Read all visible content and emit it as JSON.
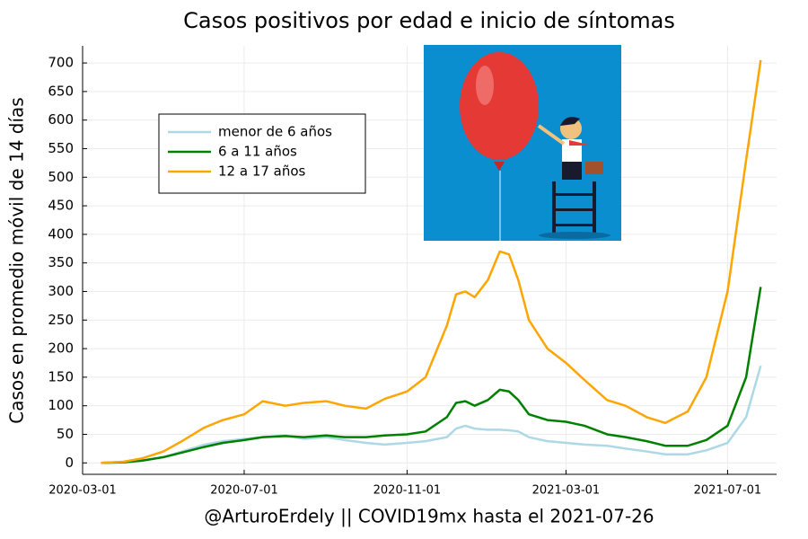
{
  "chart_data": {
    "type": "line",
    "title": "Casos positivos por edad e inicio de síntomas",
    "y_label": "Casos en promedio móvil de 14 días",
    "x_label": "@ArturoErdely || COVID19mx hasta el 2021-07-26",
    "x": [
      "2020-03-15",
      "2020-04-01",
      "2020-04-15",
      "2020-05-01",
      "2020-05-15",
      "2020-06-01",
      "2020-06-15",
      "2020-07-01",
      "2020-07-15",
      "2020-08-01",
      "2020-08-15",
      "2020-09-01",
      "2020-09-15",
      "2020-10-01",
      "2020-10-15",
      "2020-11-01",
      "2020-11-15",
      "2020-12-01",
      "2020-12-08",
      "2020-12-15",
      "2020-12-22",
      "2021-01-01",
      "2021-01-10",
      "2021-01-17",
      "2021-01-24",
      "2021-02-01",
      "2021-02-15",
      "2021-03-01",
      "2021-03-15",
      "2021-04-01",
      "2021-04-15",
      "2021-05-01",
      "2021-05-15",
      "2021-06-01",
      "2021-06-15",
      "2021-07-01",
      "2021-07-15",
      "2021-07-26"
    ],
    "series": [
      {
        "name": "menor de 6 años",
        "color": "#add8e6",
        "values": [
          0,
          1,
          4,
          10,
          20,
          32,
          38,
          42,
          45,
          48,
          42,
          45,
          40,
          35,
          32,
          35,
          38,
          45,
          60,
          65,
          60,
          58,
          58,
          57,
          55,
          45,
          38,
          35,
          32,
          30,
          25,
          20,
          15,
          15,
          22,
          35,
          80,
          170
        ]
      },
      {
        "name": "6 a 11 años",
        "color": "#008000",
        "values": [
          0,
          1,
          4,
          10,
          18,
          28,
          35,
          40,
          45,
          47,
          45,
          48,
          45,
          45,
          48,
          50,
          55,
          80,
          105,
          108,
          100,
          110,
          128,
          125,
          110,
          85,
          75,
          72,
          65,
          50,
          45,
          38,
          30,
          30,
          40,
          65,
          150,
          308
        ]
      },
      {
        "name": "12 a 17 años",
        "color": "#ffa500",
        "values": [
          0,
          2,
          8,
          20,
          38,
          62,
          75,
          85,
          108,
          100,
          105,
          108,
          100,
          95,
          112,
          125,
          150,
          240,
          295,
          300,
          290,
          320,
          370,
          365,
          320,
          250,
          200,
          175,
          145,
          110,
          100,
          80,
          70,
          90,
          150,
          300,
          530,
          705
        ]
      }
    ],
    "xlim": [
      "2020-03-01",
      "2021-08-07"
    ],
    "xticks": [
      "2020-03-01",
      "2020-07-01",
      "2020-11-01",
      "2021-03-01",
      "2021-07-01"
    ],
    "ylim": [
      -20,
      730
    ],
    "yticks": [
      0,
      50,
      100,
      150,
      200,
      250,
      300,
      350,
      400,
      450,
      500,
      550,
      600,
      650,
      700
    ],
    "grid": true,
    "legend": "upper left"
  }
}
